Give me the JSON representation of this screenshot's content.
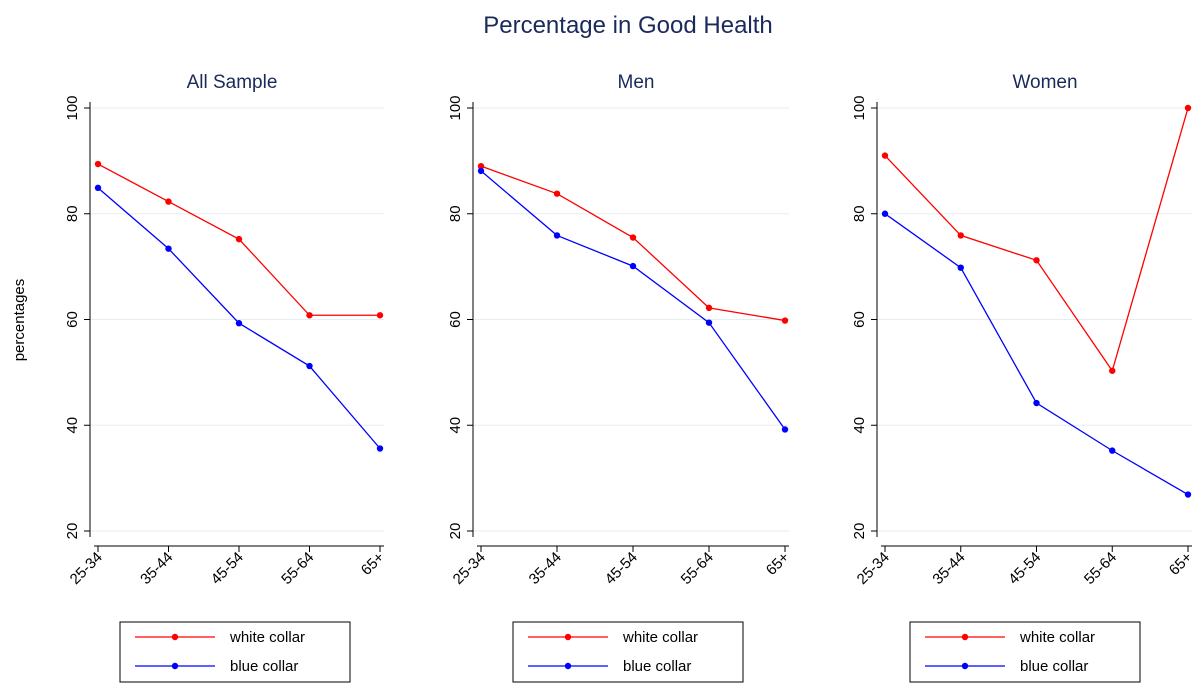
{
  "title": "Percentage in Good Health",
  "ylabel": "percentages",
  "colors": {
    "white_collar": "#ff0000",
    "blue_collar": "#0000ff"
  },
  "chart_data": [
    {
      "type": "line",
      "title": "All Sample",
      "categories": [
        "25-34",
        "35-44",
        "45-54",
        "55-64",
        "65+"
      ],
      "ylim": [
        20,
        100
      ],
      "yticks": [
        20,
        40,
        60,
        80,
        100
      ],
      "grid": true,
      "legend_position": "bottom",
      "series": [
        {
          "name": "white collar",
          "values": [
            89.4,
            82.3,
            75.2,
            60.8,
            60.8
          ]
        },
        {
          "name": "blue collar",
          "values": [
            84.9,
            73.4,
            59.3,
            51.2,
            35.6
          ]
        }
      ]
    },
    {
      "type": "line",
      "title": "Men",
      "categories": [
        "25-34",
        "35-44",
        "45-54",
        "55-64",
        "65+"
      ],
      "ylim": [
        20,
        100
      ],
      "yticks": [
        20,
        40,
        60,
        80,
        100
      ],
      "grid": true,
      "legend_position": "bottom",
      "series": [
        {
          "name": "white collar",
          "values": [
            89.0,
            83.8,
            75.5,
            62.2,
            59.8
          ]
        },
        {
          "name": "blue collar",
          "values": [
            88.1,
            75.9,
            70.1,
            59.4,
            39.2
          ]
        }
      ]
    },
    {
      "type": "line",
      "title": "Women",
      "categories": [
        "25-34",
        "35-44",
        "45-54",
        "55-64",
        "65+"
      ],
      "ylim": [
        20,
        100
      ],
      "yticks": [
        20,
        40,
        60,
        80,
        100
      ],
      "grid": true,
      "legend_position": "bottom",
      "series": [
        {
          "name": "white collar",
          "values": [
            91.0,
            75.9,
            71.2,
            50.3,
            100.0
          ]
        },
        {
          "name": "blue collar",
          "values": [
            80.0,
            69.8,
            44.2,
            35.2,
            26.9
          ]
        }
      ]
    }
  ]
}
